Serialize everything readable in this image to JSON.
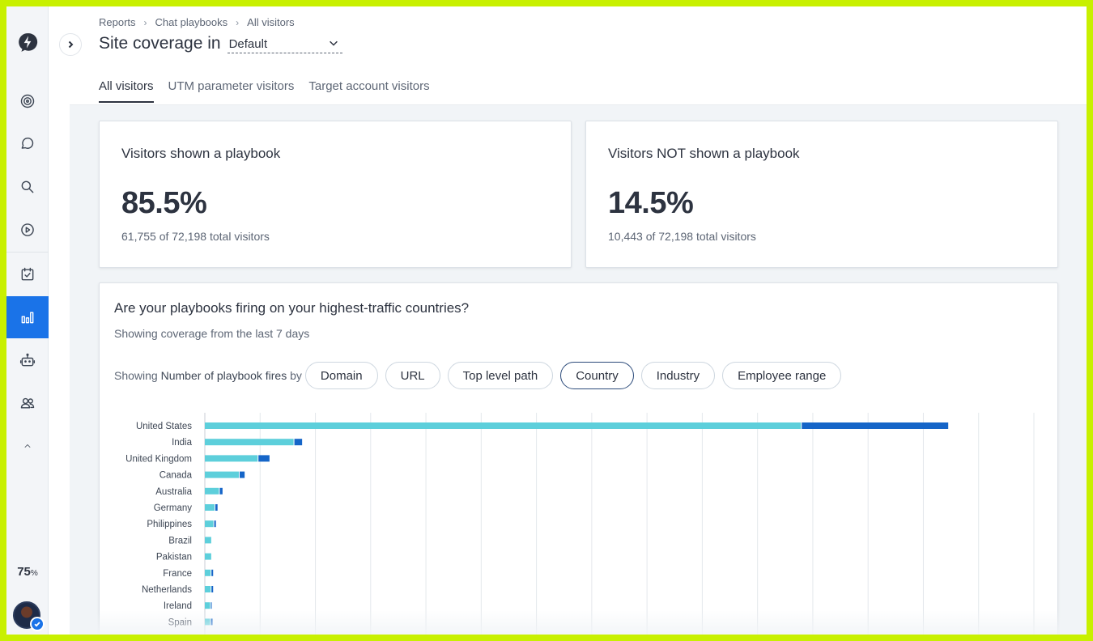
{
  "zoom": {
    "value": "75",
    "unit": "%"
  },
  "breadcrumb": [
    "Reports",
    "Chat playbooks",
    "All visitors"
  ],
  "header": {
    "title": "Site coverage in",
    "select_value": "Default"
  },
  "tabs": [
    {
      "label": "All visitors",
      "active": true
    },
    {
      "label": "UTM parameter visitors",
      "active": false
    },
    {
      "label": "Target account visitors",
      "active": false
    }
  ],
  "cards": {
    "shown": {
      "title": "Visitors shown a playbook",
      "value": "85.5%",
      "sub": "61,755 of 72,198 total visitors"
    },
    "not_shown": {
      "title": "Visitors NOT shown a playbook",
      "value": "14.5%",
      "sub": "10,443 of 72,198 total visitors"
    }
  },
  "chart_card": {
    "title": "Are your playbooks firing on your highest-traffic countries?",
    "subtitle": "Showing coverage from the last 7 days",
    "filter_prefix": "Showing",
    "filter_metric": "Number of playbook fires",
    "filter_by": "by",
    "filters": [
      {
        "label": "Domain",
        "selected": false
      },
      {
        "label": "URL",
        "selected": false
      },
      {
        "label": "Top level path",
        "selected": false
      },
      {
        "label": "Country",
        "selected": true
      },
      {
        "label": "Industry",
        "selected": false
      },
      {
        "label": "Employee range",
        "selected": false
      }
    ]
  },
  "colors": {
    "accent": "#1a73e8",
    "series_light": "#5dcfdb",
    "series_dark": "#1565c8"
  },
  "chart_data": {
    "type": "bar",
    "orientation": "horizontal",
    "stacked": true,
    "categories": [
      "United States",
      "India",
      "United Kingdom",
      "Canada",
      "Australia",
      "Germany",
      "Philippines",
      "Brazil",
      "Pakistan",
      "France",
      "Netherlands",
      "Ireland",
      "Spain"
    ],
    "series": [
      {
        "values": [
          1080,
          162,
          97,
          63,
          27,
          19,
          17,
          13,
          13,
          12,
          12,
          11,
          11
        ]
      },
      {
        "values": [
          265,
          14,
          20,
          9,
          5,
          4,
          3,
          0,
          0,
          3,
          3,
          1,
          3
        ]
      }
    ],
    "xlim": [
      0,
      1500
    ],
    "grid": true,
    "xlabel": "",
    "ylabel": ""
  }
}
